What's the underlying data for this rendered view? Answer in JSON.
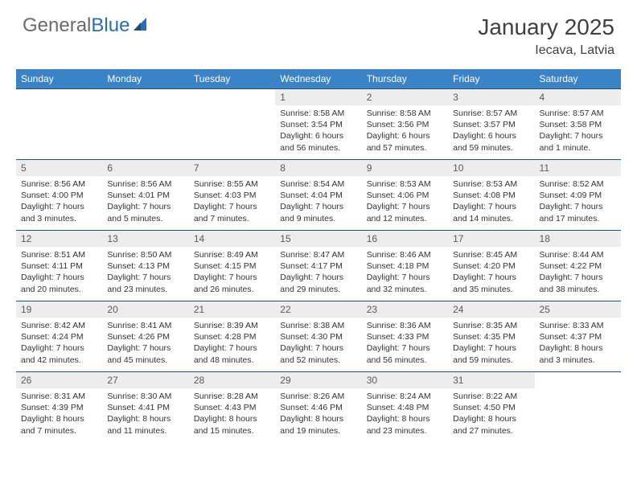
{
  "brand": {
    "text1": "General",
    "text2": "Blue"
  },
  "title": "January 2025",
  "location": "Iecava, Latvia",
  "colors": {
    "header_bg": "#3b83c7",
    "header_text": "#ffffff",
    "border": "#1f4e79",
    "daynum_bg": "#ededed",
    "body_text": "#333333",
    "brand_gray": "#6b6b6b",
    "brand_blue": "#2a6fb5"
  },
  "weekdays": [
    "Sunday",
    "Monday",
    "Tuesday",
    "Wednesday",
    "Thursday",
    "Friday",
    "Saturday"
  ],
  "weeks": [
    [
      null,
      null,
      null,
      {
        "n": "1",
        "sr": "Sunrise: 8:58 AM",
        "ss": "Sunset: 3:54 PM",
        "dl": "Daylight: 6 hours and 56 minutes."
      },
      {
        "n": "2",
        "sr": "Sunrise: 8:58 AM",
        "ss": "Sunset: 3:56 PM",
        "dl": "Daylight: 6 hours and 57 minutes."
      },
      {
        "n": "3",
        "sr": "Sunrise: 8:57 AM",
        "ss": "Sunset: 3:57 PM",
        "dl": "Daylight: 6 hours and 59 minutes."
      },
      {
        "n": "4",
        "sr": "Sunrise: 8:57 AM",
        "ss": "Sunset: 3:58 PM",
        "dl": "Daylight: 7 hours and 1 minute."
      }
    ],
    [
      {
        "n": "5",
        "sr": "Sunrise: 8:56 AM",
        "ss": "Sunset: 4:00 PM",
        "dl": "Daylight: 7 hours and 3 minutes."
      },
      {
        "n": "6",
        "sr": "Sunrise: 8:56 AM",
        "ss": "Sunset: 4:01 PM",
        "dl": "Daylight: 7 hours and 5 minutes."
      },
      {
        "n": "7",
        "sr": "Sunrise: 8:55 AM",
        "ss": "Sunset: 4:03 PM",
        "dl": "Daylight: 7 hours and 7 minutes."
      },
      {
        "n": "8",
        "sr": "Sunrise: 8:54 AM",
        "ss": "Sunset: 4:04 PM",
        "dl": "Daylight: 7 hours and 9 minutes."
      },
      {
        "n": "9",
        "sr": "Sunrise: 8:53 AM",
        "ss": "Sunset: 4:06 PM",
        "dl": "Daylight: 7 hours and 12 minutes."
      },
      {
        "n": "10",
        "sr": "Sunrise: 8:53 AM",
        "ss": "Sunset: 4:08 PM",
        "dl": "Daylight: 7 hours and 14 minutes."
      },
      {
        "n": "11",
        "sr": "Sunrise: 8:52 AM",
        "ss": "Sunset: 4:09 PM",
        "dl": "Daylight: 7 hours and 17 minutes."
      }
    ],
    [
      {
        "n": "12",
        "sr": "Sunrise: 8:51 AM",
        "ss": "Sunset: 4:11 PM",
        "dl": "Daylight: 7 hours and 20 minutes."
      },
      {
        "n": "13",
        "sr": "Sunrise: 8:50 AM",
        "ss": "Sunset: 4:13 PM",
        "dl": "Daylight: 7 hours and 23 minutes."
      },
      {
        "n": "14",
        "sr": "Sunrise: 8:49 AM",
        "ss": "Sunset: 4:15 PM",
        "dl": "Daylight: 7 hours and 26 minutes."
      },
      {
        "n": "15",
        "sr": "Sunrise: 8:47 AM",
        "ss": "Sunset: 4:17 PM",
        "dl": "Daylight: 7 hours and 29 minutes."
      },
      {
        "n": "16",
        "sr": "Sunrise: 8:46 AM",
        "ss": "Sunset: 4:18 PM",
        "dl": "Daylight: 7 hours and 32 minutes."
      },
      {
        "n": "17",
        "sr": "Sunrise: 8:45 AM",
        "ss": "Sunset: 4:20 PM",
        "dl": "Daylight: 7 hours and 35 minutes."
      },
      {
        "n": "18",
        "sr": "Sunrise: 8:44 AM",
        "ss": "Sunset: 4:22 PM",
        "dl": "Daylight: 7 hours and 38 minutes."
      }
    ],
    [
      {
        "n": "19",
        "sr": "Sunrise: 8:42 AM",
        "ss": "Sunset: 4:24 PM",
        "dl": "Daylight: 7 hours and 42 minutes."
      },
      {
        "n": "20",
        "sr": "Sunrise: 8:41 AM",
        "ss": "Sunset: 4:26 PM",
        "dl": "Daylight: 7 hours and 45 minutes."
      },
      {
        "n": "21",
        "sr": "Sunrise: 8:39 AM",
        "ss": "Sunset: 4:28 PM",
        "dl": "Daylight: 7 hours and 48 minutes."
      },
      {
        "n": "22",
        "sr": "Sunrise: 8:38 AM",
        "ss": "Sunset: 4:30 PM",
        "dl": "Daylight: 7 hours and 52 minutes."
      },
      {
        "n": "23",
        "sr": "Sunrise: 8:36 AM",
        "ss": "Sunset: 4:33 PM",
        "dl": "Daylight: 7 hours and 56 minutes."
      },
      {
        "n": "24",
        "sr": "Sunrise: 8:35 AM",
        "ss": "Sunset: 4:35 PM",
        "dl": "Daylight: 7 hours and 59 minutes."
      },
      {
        "n": "25",
        "sr": "Sunrise: 8:33 AM",
        "ss": "Sunset: 4:37 PM",
        "dl": "Daylight: 8 hours and 3 minutes."
      }
    ],
    [
      {
        "n": "26",
        "sr": "Sunrise: 8:31 AM",
        "ss": "Sunset: 4:39 PM",
        "dl": "Daylight: 8 hours and 7 minutes."
      },
      {
        "n": "27",
        "sr": "Sunrise: 8:30 AM",
        "ss": "Sunset: 4:41 PM",
        "dl": "Daylight: 8 hours and 11 minutes."
      },
      {
        "n": "28",
        "sr": "Sunrise: 8:28 AM",
        "ss": "Sunset: 4:43 PM",
        "dl": "Daylight: 8 hours and 15 minutes."
      },
      {
        "n": "29",
        "sr": "Sunrise: 8:26 AM",
        "ss": "Sunset: 4:46 PM",
        "dl": "Daylight: 8 hours and 19 minutes."
      },
      {
        "n": "30",
        "sr": "Sunrise: 8:24 AM",
        "ss": "Sunset: 4:48 PM",
        "dl": "Daylight: 8 hours and 23 minutes."
      },
      {
        "n": "31",
        "sr": "Sunrise: 8:22 AM",
        "ss": "Sunset: 4:50 PM",
        "dl": "Daylight: 8 hours and 27 minutes."
      },
      null
    ]
  ]
}
